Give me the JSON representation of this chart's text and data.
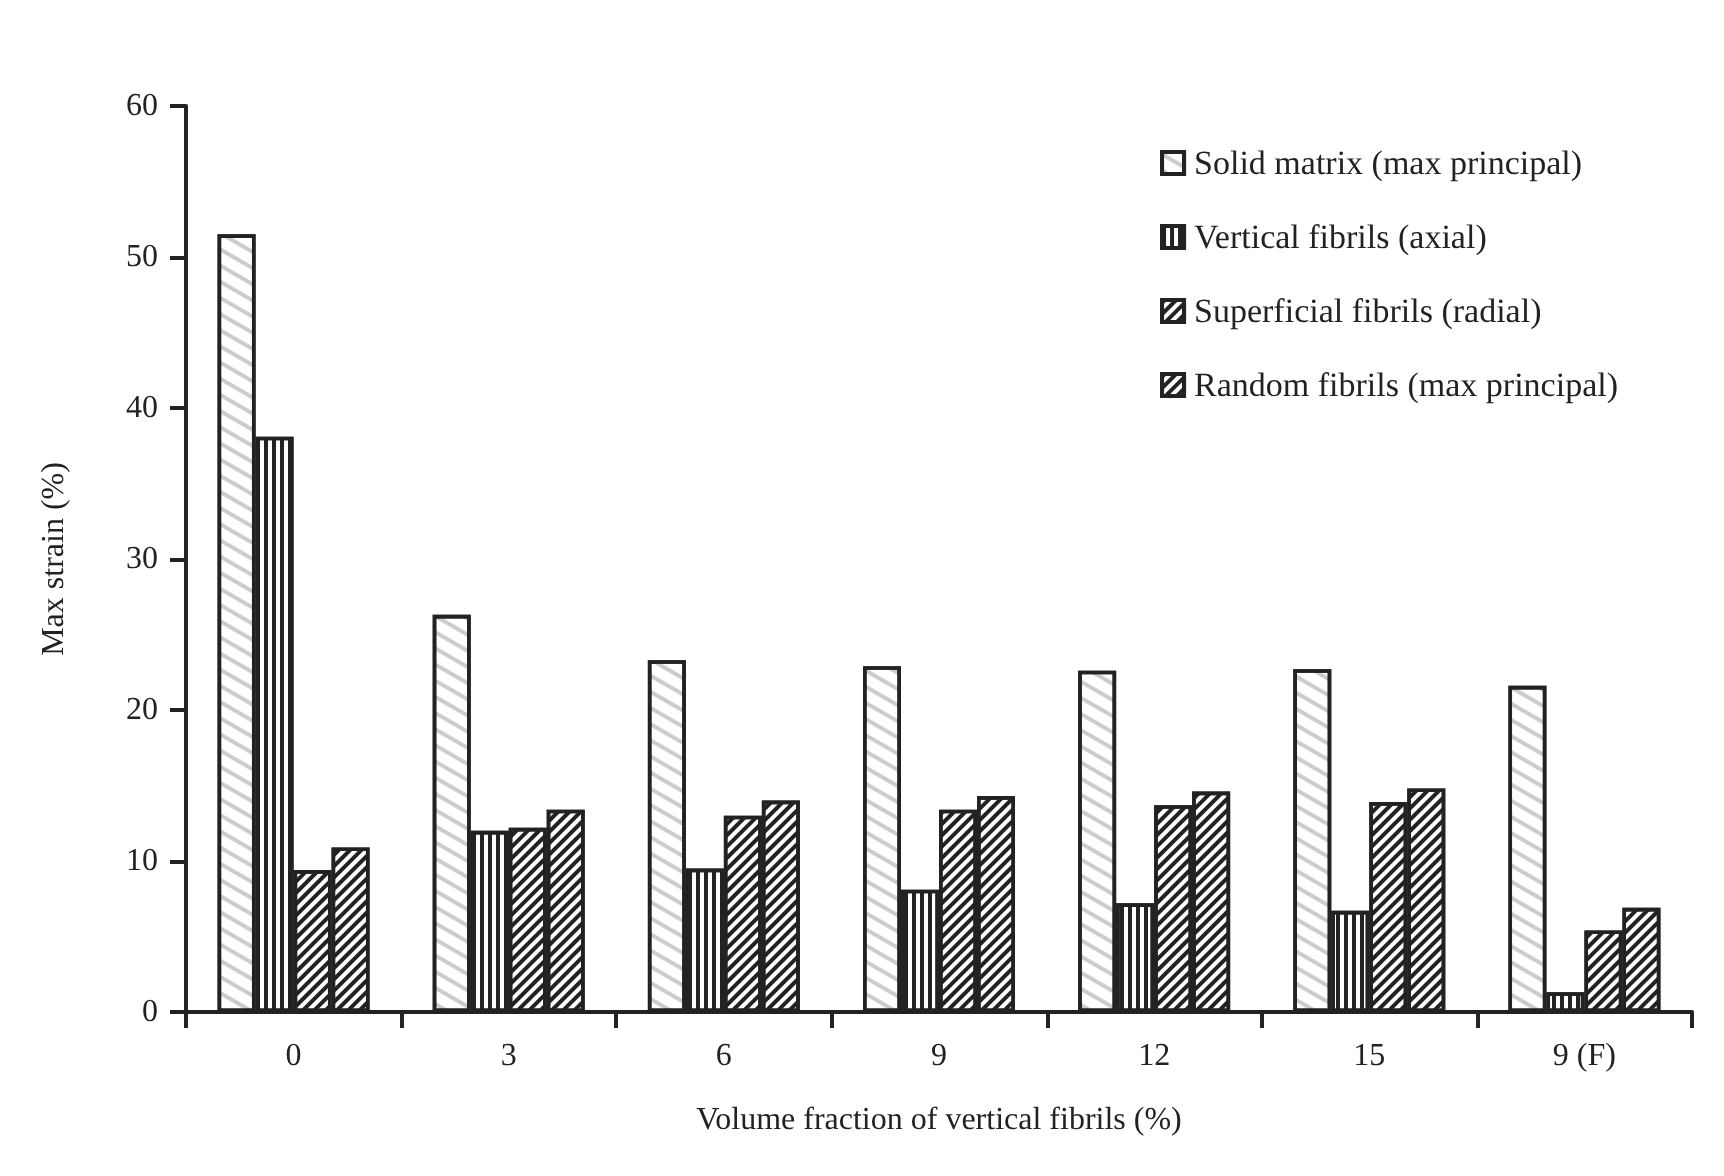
{
  "chart_data": {
    "type": "bar",
    "xlabel": "Volume fraction of vertical fibrils (%)",
    "ylabel": "Max strain (%)",
    "categories": [
      "0",
      "3",
      "6",
      "9",
      "12",
      "15",
      "9 (F)"
    ],
    "series": [
      {
        "name": "Solid matrix (max principal)",
        "color": "#ffffff",
        "values": [
          51.5,
          26.3,
          23.3,
          22.9,
          22.6,
          22.7,
          21.6
        ]
      },
      {
        "name": "Vertical fibrils (axial)",
        "color": "#ffffff",
        "values": [
          38.1,
          12.0,
          9.5,
          8.1,
          7.2,
          6.7,
          1.3
        ]
      },
      {
        "name": "Superficial fibrils (radial)",
        "color": "#ffffff",
        "values": [
          9.4,
          12.2,
          13.0,
          13.4,
          13.7,
          13.9,
          5.4
        ]
      },
      {
        "name": "Random fibrils (max principal)",
        "color": "#ffffff",
        "values": [
          10.9,
          13.4,
          14.0,
          14.3,
          14.6,
          14.8,
          6.9
        ]
      }
    ],
    "ylim": [
      0,
      60
    ],
    "yticks": [
      0,
      10,
      20,
      30,
      40,
      50,
      60
    ],
    "grid": false,
    "legend": "top right"
  }
}
